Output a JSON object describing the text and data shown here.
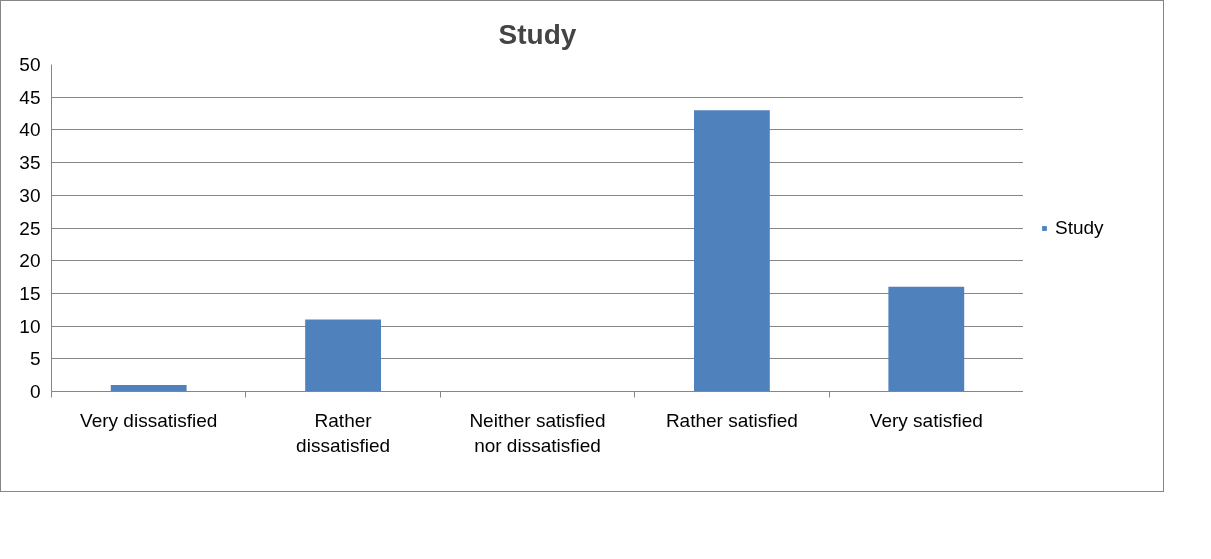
{
  "chart_data": {
    "type": "bar",
    "title": "Study",
    "categories": [
      "Very dissatisfied",
      "Rather dissatisfied",
      "Neither satisfied nor dissatisfied",
      "Rather satisfied",
      "Very satisfied"
    ],
    "series": [
      {
        "name": "Study",
        "color": "#4f81bd",
        "values": [
          1,
          11,
          0,
          43,
          16
        ]
      }
    ],
    "ylim": [
      0,
      50
    ],
    "yticks": [
      0,
      5,
      10,
      15,
      20,
      25,
      30,
      35,
      40,
      45,
      50
    ],
    "grid": "y",
    "legend": "right"
  }
}
